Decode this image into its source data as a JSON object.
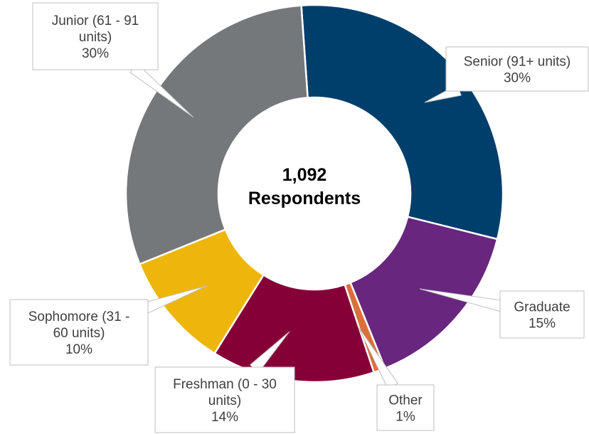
{
  "chart_data": {
    "type": "pie",
    "variant": "donut",
    "center_label": [
      "1,092",
      "Respondents"
    ],
    "slices": [
      {
        "name": "Senior (91+ units)",
        "value": 30,
        "label_lines": [
          "Senior (91+ units)",
          "30%"
        ],
        "color": "#003f6b"
      },
      {
        "name": "Graduate",
        "value": 15,
        "label_lines": [
          "Graduate",
          "15%"
        ],
        "color": "#68267f"
      },
      {
        "name": "Other",
        "value": 1,
        "label_lines": [
          "Other",
          "1%"
        ],
        "color": "#d9703a"
      },
      {
        "name": "Freshman (0 - 30 units)",
        "value": 14,
        "label_lines": [
          "Freshman (0 - 30",
          "units)",
          "14%"
        ],
        "color": "#860038"
      },
      {
        "name": "Sophomore (31 - 60 units)",
        "value": 10,
        "label_lines": [
          "Sophomore (31 -",
          "60 units)",
          "10%"
        ],
        "color": "#eeb60b"
      },
      {
        "name": "Junior (61 - 91 units)",
        "value": 30,
        "label_lines": [
          "Junior (61 - 91",
          "units)",
          "30%"
        ],
        "color": "#75787b"
      }
    ]
  }
}
